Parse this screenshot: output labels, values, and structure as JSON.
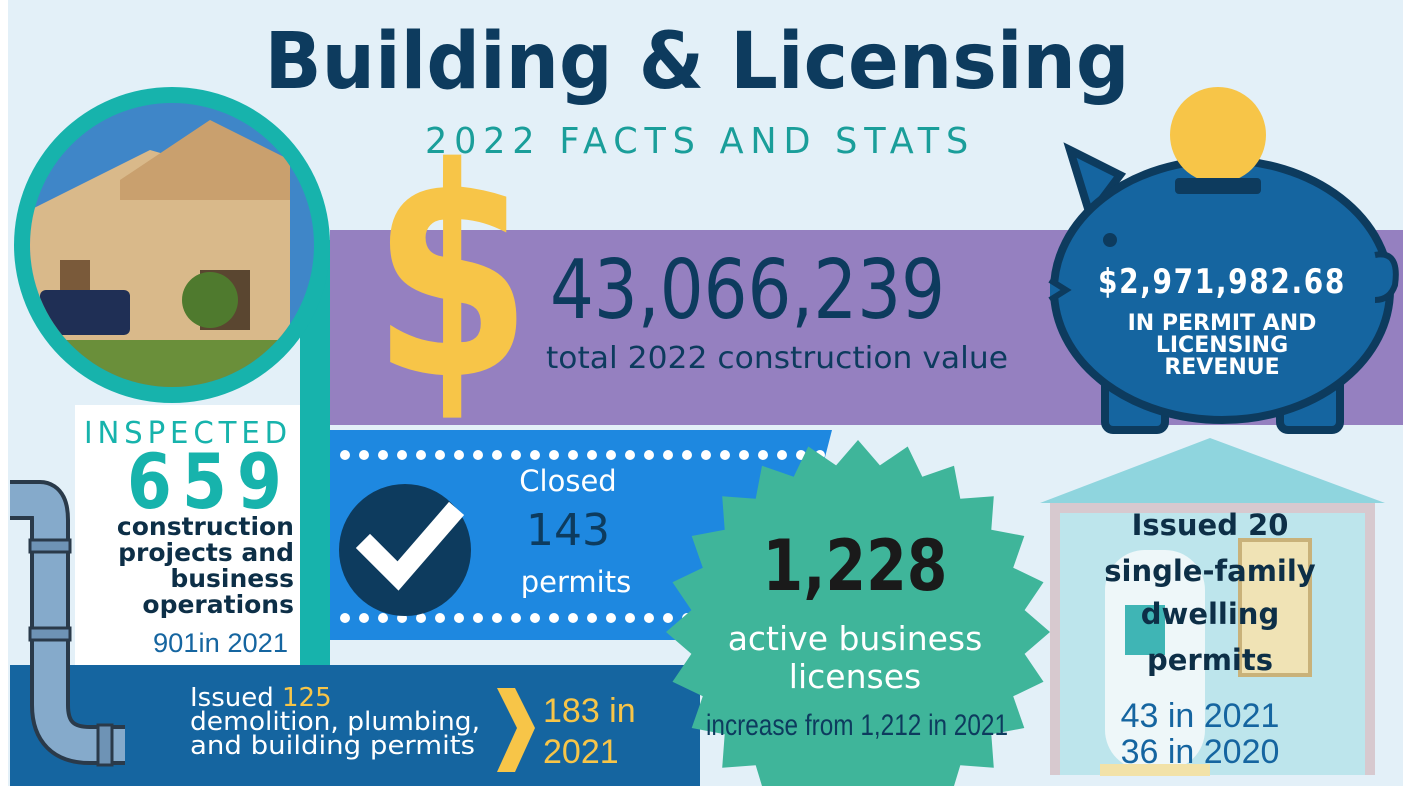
{
  "header": {
    "title": "Building & Licensing",
    "subtitle": "2022 FACTS AND STATS"
  },
  "construction_value": {
    "symbol": "$",
    "value": "43,066,239",
    "label": "total 2022 construction value"
  },
  "revenue": {
    "value": "$2,971,982.68",
    "label_lines": [
      "IN PERMIT AND",
      "LICENSING",
      "REVENUE"
    ]
  },
  "inspections": {
    "heading": "INSPECTED",
    "value": "659",
    "label_lines": [
      "construction",
      "projects and",
      "business",
      "operations"
    ],
    "comparison": "901in 2021"
  },
  "closed_permits": {
    "heading": "Closed",
    "value": "143",
    "label": "permits"
  },
  "demolition_permits": {
    "prefix": "Issued",
    "value": "125",
    "label_lines": [
      "demolition, plumbing,",
      "and building permits"
    ],
    "comparison_lines": [
      "183 in",
      "2021"
    ]
  },
  "business_licenses": {
    "value": "1,228",
    "label_lines": [
      "active business",
      "licenses"
    ],
    "comparison": "increase from 1,212 in 2021"
  },
  "dwelling_permits": {
    "heading_lines": [
      "Issued 20",
      "single-family",
      "dwelling",
      "permits"
    ],
    "comparison_lines": [
      "43 in 2021",
      "36 in 2020"
    ]
  }
}
